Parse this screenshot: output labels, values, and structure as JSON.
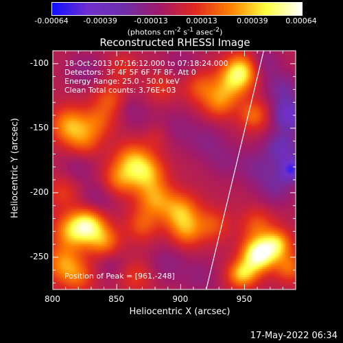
{
  "colorbar": {
    "tick_labels": [
      "-0.00064",
      "-0.00039",
      "-0.00013",
      "0.00013",
      "0.00039",
      "0.00064"
    ],
    "tick_values": [
      -0.00064,
      -0.00039,
      -0.00013,
      0.00013,
      0.00039,
      0.00064
    ],
    "unit_prefix": "(photons cm",
    "unit_exp1": "-2",
    "unit_mid1": " s",
    "unit_exp2": "-1",
    "unit_mid2": " asec",
    "unit_exp3": "-2",
    "unit_suffix": ")",
    "colors": [
      "#1010ff",
      "#7030d0",
      "#6e2faa",
      "#a01a6a",
      "#e02820",
      "#ff8000",
      "#ffff40",
      "#ffffff"
    ]
  },
  "chart_data": {
    "type": "heatmap",
    "title": "Reconstructed RHESSI Image",
    "xlabel": "Heliocentric X (arcsec)",
    "ylabel": "Heliocentric Y (arcsec)",
    "xlim": [
      800,
      990
    ],
    "ylim": [
      -275,
      -90
    ],
    "xticks": [
      800,
      850,
      900,
      950
    ],
    "yticks": [
      -100,
      -150,
      -200,
      -250
    ],
    "xtick_labels": [
      "800",
      "850",
      "900",
      "950"
    ],
    "ytick_labels": [
      "-100",
      "-150",
      "-200",
      "-250"
    ],
    "annotations": [
      "18-Oct-2013 07:16:12.000 to 07:18:24.000",
      "Detectors: 3F 4F 5F 6F 7F 8F, Att 0",
      "Energy Range: 25.0 - 50.0 keV",
      "Clean    Total counts: 3.76E+03"
    ],
    "peak_text": "Position of Peak = [961,-248]",
    "peak": [
      961,
      -248
    ],
    "limb_line": [
      [
        920,
        -275
      ],
      [
        965,
        -90
      ]
    ],
    "blobs": [
      {
        "x": 961,
        "y": -248,
        "r": 9,
        "v": 0.00064
      },
      {
        "x": 948,
        "y": -262,
        "r": 8,
        "v": 0.00045
      },
      {
        "x": 975,
        "y": -240,
        "r": 8,
        "v": 0.0004
      },
      {
        "x": 960,
        "y": -225,
        "r": 9,
        "v": 0.0002
      },
      {
        "x": 985,
        "y": -258,
        "r": 8,
        "v": 0.00025
      },
      {
        "x": 815,
        "y": -230,
        "r": 10,
        "v": 0.00035
      },
      {
        "x": 828,
        "y": -225,
        "r": 9,
        "v": 0.00045
      },
      {
        "x": 840,
        "y": -238,
        "r": 9,
        "v": 0.0003
      },
      {
        "x": 808,
        "y": -255,
        "r": 10,
        "v": 0.0003
      },
      {
        "x": 820,
        "y": -265,
        "r": 9,
        "v": 0.0002
      },
      {
        "x": 862,
        "y": -175,
        "r": 10,
        "v": 0.0003
      },
      {
        "x": 873,
        "y": -185,
        "r": 10,
        "v": 0.00035
      },
      {
        "x": 852,
        "y": -190,
        "r": 9,
        "v": 0.00025
      },
      {
        "x": 880,
        "y": -205,
        "r": 10,
        "v": 0.0003
      },
      {
        "x": 900,
        "y": -215,
        "r": 10,
        "v": 0.00035
      },
      {
        "x": 905,
        "y": -230,
        "r": 9,
        "v": 0.00025
      },
      {
        "x": 925,
        "y": -225,
        "r": 9,
        "v": 0.0002
      },
      {
        "x": 870,
        "y": -225,
        "r": 9,
        "v": 0.0002
      },
      {
        "x": 940,
        "y": -115,
        "r": 10,
        "v": 0.0003
      },
      {
        "x": 948,
        "y": -105,
        "r": 9,
        "v": 0.0004
      },
      {
        "x": 930,
        "y": -130,
        "r": 9,
        "v": 0.00025
      },
      {
        "x": 915,
        "y": -118,
        "r": 9,
        "v": 0.0002
      },
      {
        "x": 957,
        "y": -140,
        "r": 8,
        "v": 0.00025
      },
      {
        "x": 813,
        "y": -148,
        "r": 10,
        "v": 0.00035
      },
      {
        "x": 835,
        "y": -145,
        "r": 9,
        "v": 0.0002
      },
      {
        "x": 825,
        "y": -160,
        "r": 9,
        "v": 0.0002
      },
      {
        "x": 845,
        "y": -128,
        "r": 9,
        "v": 0.0002
      },
      {
        "x": 885,
        "y": -118,
        "r": 8,
        "v": 0.00015
      },
      {
        "x": 808,
        "y": -200,
        "r": 9,
        "v": 0.00015
      },
      {
        "x": 865,
        "y": -265,
        "r": 9,
        "v": 0.00015
      },
      {
        "x": 880,
        "y": -155,
        "r": 8,
        "v": 0.00012
      },
      {
        "x": 855,
        "y": -103,
        "r": 8,
        "v": 0.00012
      },
      {
        "x": 875,
        "y": -148,
        "r": 9,
        "v": -8e-05
      },
      {
        "x": 898,
        "y": -150,
        "r": 10,
        "v": -0.0001
      },
      {
        "x": 920,
        "y": -160,
        "r": 10,
        "v": -0.00012
      },
      {
        "x": 935,
        "y": -175,
        "r": 10,
        "v": -0.0001
      },
      {
        "x": 890,
        "y": -255,
        "r": 10,
        "v": -0.00012
      },
      {
        "x": 915,
        "y": -265,
        "r": 10,
        "v": -0.0001
      },
      {
        "x": 845,
        "y": -255,
        "r": 9,
        "v": -0.0001
      },
      {
        "x": 835,
        "y": -205,
        "r": 10,
        "v": -0.00012
      },
      {
        "x": 820,
        "y": -180,
        "r": 9,
        "v": -0.0001
      },
      {
        "x": 960,
        "y": -180,
        "r": 10,
        "v": -0.00015
      },
      {
        "x": 975,
        "y": -195,
        "r": 10,
        "v": -0.00018
      },
      {
        "x": 980,
        "y": -165,
        "r": 9,
        "v": -0.0003
      },
      {
        "x": 985,
        "y": -140,
        "r": 8,
        "v": -0.0004
      },
      {
        "x": 980,
        "y": -120,
        "r": 9,
        "v": -0.0002
      },
      {
        "x": 965,
        "y": -100,
        "r": 9,
        "v": -0.00015
      },
      {
        "x": 987,
        "y": -182,
        "r": 6,
        "v": -0.00045
      },
      {
        "x": 900,
        "y": -100,
        "r": 10,
        "v": -8e-05
      },
      {
        "x": 825,
        "y": -105,
        "r": 9,
        "v": -0.00012
      },
      {
        "x": 860,
        "y": -135,
        "r": 8,
        "v": -0.0001
      },
      {
        "x": 945,
        "y": -255,
        "r": 7,
        "v": -8e-05
      }
    ]
  },
  "timestamp": "17-May-2022 06:34"
}
